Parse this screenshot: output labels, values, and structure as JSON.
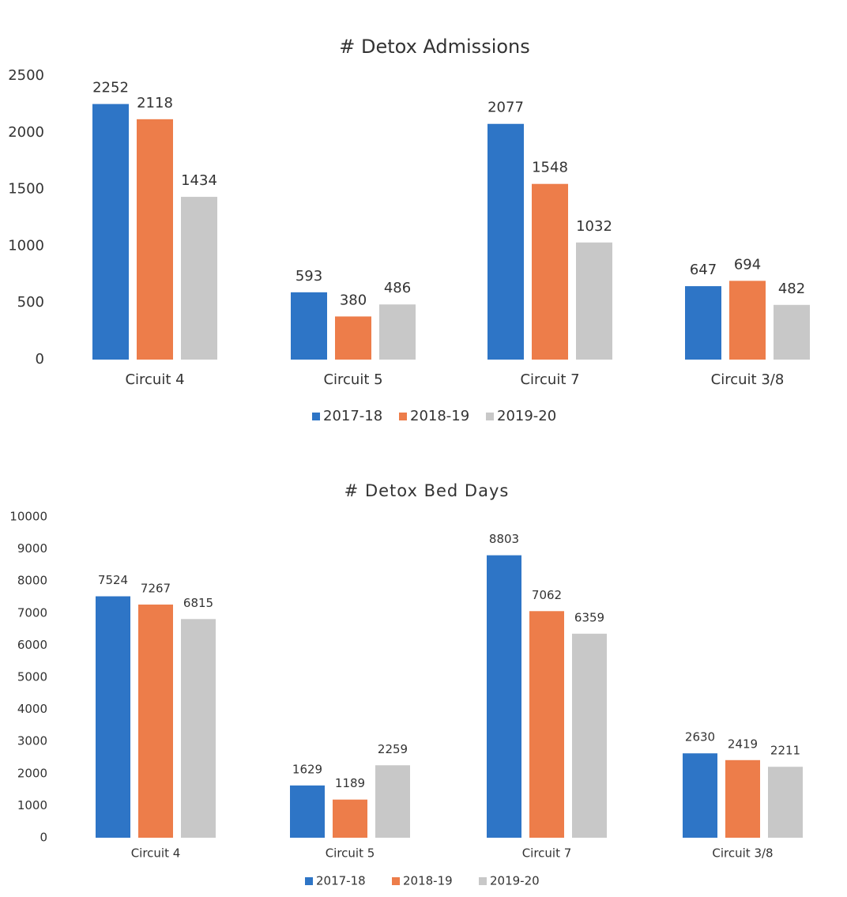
{
  "chart_data": [
    {
      "type": "bar",
      "title": "# Detox Admissions",
      "categories": [
        "Circuit 4",
        "Circuit 5",
        "Circuit 7",
        "Circuit 3/8"
      ],
      "series": [
        {
          "name": "2017-18",
          "color": "#2e75c6",
          "values": [
            2252,
            593,
            2077,
            647
          ]
        },
        {
          "name": "2018-19",
          "color": "#ed7d4a",
          "values": [
            2118,
            380,
            1548,
            694
          ]
        },
        {
          "name": "2019-20",
          "color": "#c8c8c8",
          "values": [
            1434,
            486,
            1032,
            482
          ]
        }
      ],
      "ylim": [
        0,
        2500
      ],
      "yticks": [
        0,
        500,
        1000,
        1500,
        2000,
        2500
      ],
      "grid": false,
      "legend": "bottom"
    },
    {
      "type": "bar",
      "title": "# Detox Bed Days",
      "categories": [
        "Circuit 4",
        "Circuit 5",
        "Circuit 7",
        "Circuit 3/8"
      ],
      "series": [
        {
          "name": "2017-18",
          "color": "#2e75c6",
          "values": [
            7524,
            1629,
            8803,
            2630
          ]
        },
        {
          "name": "2018-19",
          "color": "#ed7d4a",
          "values": [
            7267,
            1189,
            7062,
            2419
          ]
        },
        {
          "name": "2019-20",
          "color": "#c8c8c8",
          "values": [
            6815,
            2259,
            6359,
            2211
          ]
        }
      ],
      "ylim": [
        0,
        10000
      ],
      "yticks": [
        0,
        1000,
        2000,
        3000,
        4000,
        5000,
        6000,
        7000,
        8000,
        9000,
        10000
      ],
      "grid": false,
      "legend": "bottom"
    }
  ]
}
